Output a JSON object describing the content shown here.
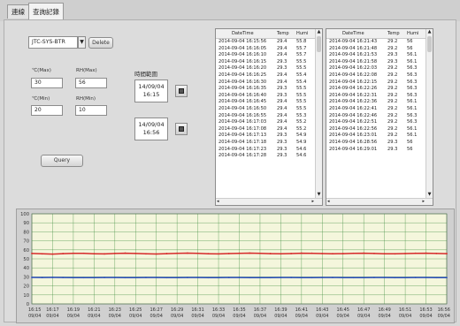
{
  "tabs": [
    {
      "label": "連線"
    },
    {
      "label": "查詢記錄"
    }
  ],
  "device": {
    "selected": "JTC-SYS-BTR"
  },
  "buttons": {
    "delete": "Delete",
    "query": "Query"
  },
  "thresholds": {
    "temp_max_label": "℃(Max)",
    "temp_max": "30",
    "rh_max_label": "RH(Max)",
    "rh_max": "56",
    "temp_min_label": "℃(Min)",
    "temp_min": "20",
    "rh_min_label": "RH(Min)",
    "rh_min": "10"
  },
  "time_range": {
    "label": "時間範圍",
    "start_date": "14/09/04",
    "start_time": "16:15",
    "end_date": "14/09/04",
    "end_time": "16:56"
  },
  "table_headers": [
    "DateTime",
    "Temp",
    "Humi"
  ],
  "table1": [
    [
      "2014-09-04 16:15:56",
      "29.4",
      "55.8"
    ],
    [
      "2014-09-04 16:16:05",
      "29.4",
      "55.7"
    ],
    [
      "2014-09-04 16:16:10",
      "29.4",
      "55.7"
    ],
    [
      "2014-09-04 16:16:15",
      "29.3",
      "55.5"
    ],
    [
      "2014-09-04 16:16:20",
      "29.3",
      "55.5"
    ],
    [
      "2014-09-04 16:16:25",
      "29.4",
      "55.4"
    ],
    [
      "2014-09-04 16:16:30",
      "29.4",
      "55.4"
    ],
    [
      "2014-09-04 16:16:35",
      "29.3",
      "55.5"
    ],
    [
      "2014-09-04 16:16:40",
      "29.3",
      "55.5"
    ],
    [
      "2014-09-04 16:16:45",
      "29.4",
      "55.5"
    ],
    [
      "2014-09-04 16:16:50",
      "29.4",
      "55.5"
    ],
    [
      "2014-09-04 16:16:55",
      "29.4",
      "55.3"
    ],
    [
      "2014-09-04 16:17:03",
      "29.4",
      "55.2"
    ],
    [
      "2014-09-04 16:17:08",
      "29.4",
      "55.2"
    ],
    [
      "2014-09-04 16:17:13",
      "29.3",
      "54.9"
    ],
    [
      "2014-09-04 16:17:18",
      "29.3",
      "54.9"
    ],
    [
      "2014-09-04 16:17:23",
      "29.3",
      "54.6"
    ],
    [
      "2014-09-04 16:17:28",
      "29.3",
      "54.6"
    ]
  ],
  "table2": [
    [
      "2014-09-04 16:21:43",
      "29.2",
      "56"
    ],
    [
      "2014-09-04 16:21:48",
      "29.2",
      "56"
    ],
    [
      "2014-09-04 16:21:53",
      "29.3",
      "56.1"
    ],
    [
      "2014-09-04 16:21:58",
      "29.3",
      "56.1"
    ],
    [
      "2014-09-04 16:22:03",
      "29.2",
      "56.3"
    ],
    [
      "2014-09-04 16:22:08",
      "29.2",
      "56.3"
    ],
    [
      "2014-09-04 16:22:15",
      "29.2",
      "56.3"
    ],
    [
      "2014-09-04 16:22:26",
      "29.2",
      "56.3"
    ],
    [
      "2014-09-04 16:22:31",
      "29.2",
      "56.3"
    ],
    [
      "2014-09-04 16:22:36",
      "29.2",
      "56.1"
    ],
    [
      "2014-09-04 16:22:41",
      "29.2",
      "56.1"
    ],
    [
      "2014-09-04 16:22:46",
      "29.2",
      "56.3"
    ],
    [
      "2014-09-04 16:22:51",
      "29.2",
      "56.3"
    ],
    [
      "2014-09-04 16:22:56",
      "29.2",
      "56.1"
    ],
    [
      "2014-09-04 16:23:01",
      "29.2",
      "56.1"
    ],
    [
      "2014-09-04 16:28:56",
      "29.3",
      "56"
    ],
    [
      "2014-09-04 16:29:01",
      "29.3",
      "56"
    ]
  ],
  "colors": {
    "humidity_line": "#d62a2a",
    "temperature_line": "#2f4fbf",
    "plot_bg": "#f4f6dc",
    "grid": "#3a8a3a"
  },
  "chart_data": {
    "type": "line",
    "ylim": [
      0,
      100
    ],
    "yticks": [
      "0",
      "10",
      "20",
      "30",
      "40",
      "50",
      "60",
      "70",
      "80",
      "90",
      "100"
    ],
    "xticks": [
      [
        "16:15",
        "09/04"
      ],
      [
        "16:17",
        "09/04"
      ],
      [
        "16:19",
        "09/04"
      ],
      [
        "16:21",
        "09/04"
      ],
      [
        "16:23",
        "09/04"
      ],
      [
        "16:25",
        "09/04"
      ],
      [
        "16:27",
        "09/04"
      ],
      [
        "16:29",
        "09/04"
      ],
      [
        "16:31",
        "09/04"
      ],
      [
        "16:33",
        "09/04"
      ],
      [
        "16:35",
        "09/04"
      ],
      [
        "16:37",
        "09/04"
      ],
      [
        "16:39",
        "09/04"
      ],
      [
        "16:41",
        "09/04"
      ],
      [
        "16:43",
        "09/04"
      ],
      [
        "16:45",
        "09/04"
      ],
      [
        "16:47",
        "09/04"
      ],
      [
        "16:49",
        "09/04"
      ],
      [
        "16:51",
        "09/04"
      ],
      [
        "16:53",
        "09/04"
      ],
      [
        "16:56",
        "09/04"
      ]
    ],
    "series": [
      {
        "values": [
          56,
          55.6,
          55.3,
          55.8,
          56.2,
          56.1,
          55.7,
          55.5,
          56,
          56.3,
          56,
          55.6,
          55.4,
          55.8,
          56.2,
          56.4,
          56.1,
          55.7,
          55.5,
          55.9,
          56.2,
          56.4,
          56.1,
          55.8,
          55.6,
          55.9,
          56.3,
          56.2,
          55.9,
          55.7,
          55.8,
          56.1,
          56.3,
          56,
          55.7,
          55.6,
          55.9,
          56.2,
          56.3,
          56,
          55.8
        ]
      },
      {
        "values": [
          29.4,
          29.3,
          29.4,
          29.3,
          29.2,
          29.2,
          29.2,
          29.3,
          29.3,
          29.2,
          29.2,
          29.3,
          29.3,
          29.2,
          29.2,
          29.3,
          29.3,
          29.2,
          29.2,
          29.3,
          29.3,
          29.2,
          29.2,
          29.2,
          29.3,
          29.3,
          29.2,
          29.2,
          29.3,
          29.3,
          29.2,
          29.2,
          29.2,
          29.3,
          29.3,
          29.2,
          29.2,
          29.3,
          29.3,
          29.2,
          29.2
        ]
      }
    ]
  }
}
